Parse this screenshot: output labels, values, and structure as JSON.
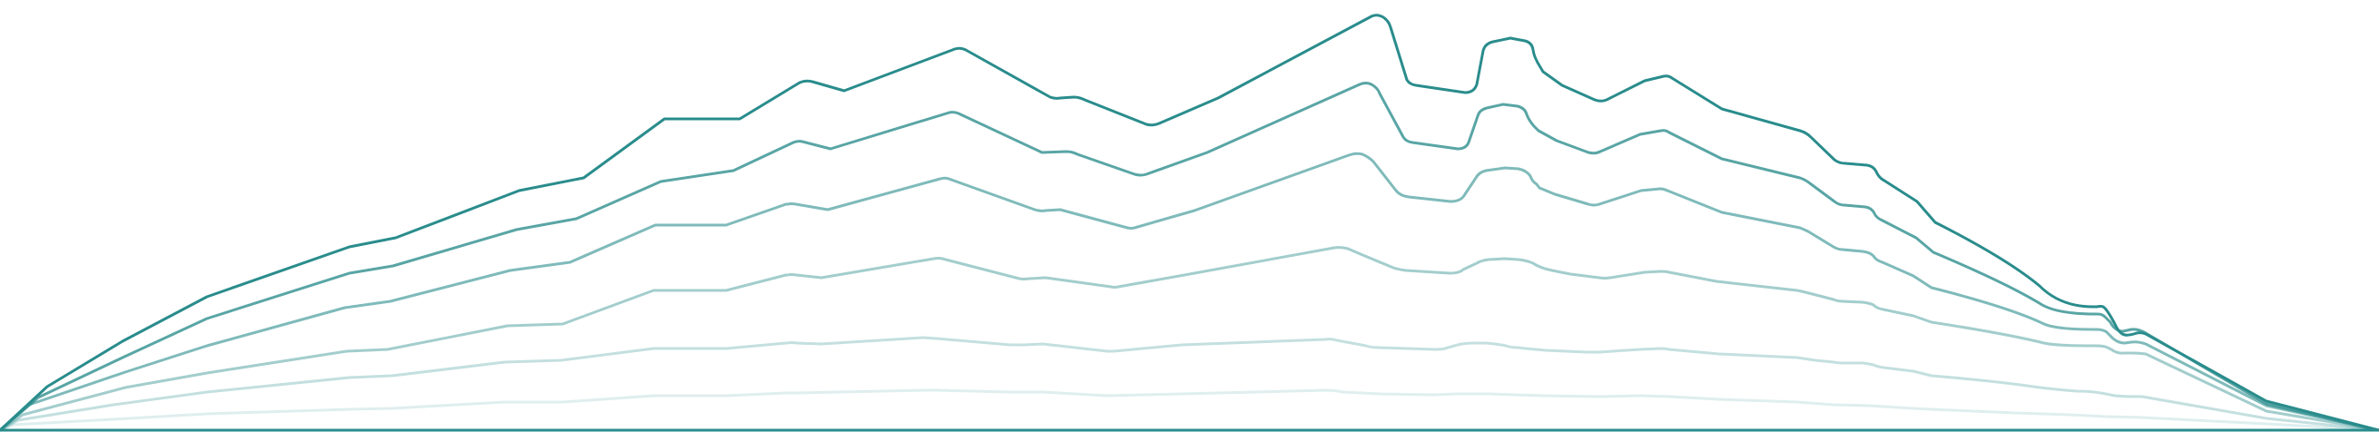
{
  "graphic": {
    "description_name": "layered-mountain-outline-graphic",
    "stroke_color": "#2a8c8c",
    "layer_count": 6,
    "layer_opacities": [
      1.0,
      0.78,
      0.6,
      0.43,
      0.28,
      0.15
    ],
    "baseline_color": "#2a8c8c"
  }
}
